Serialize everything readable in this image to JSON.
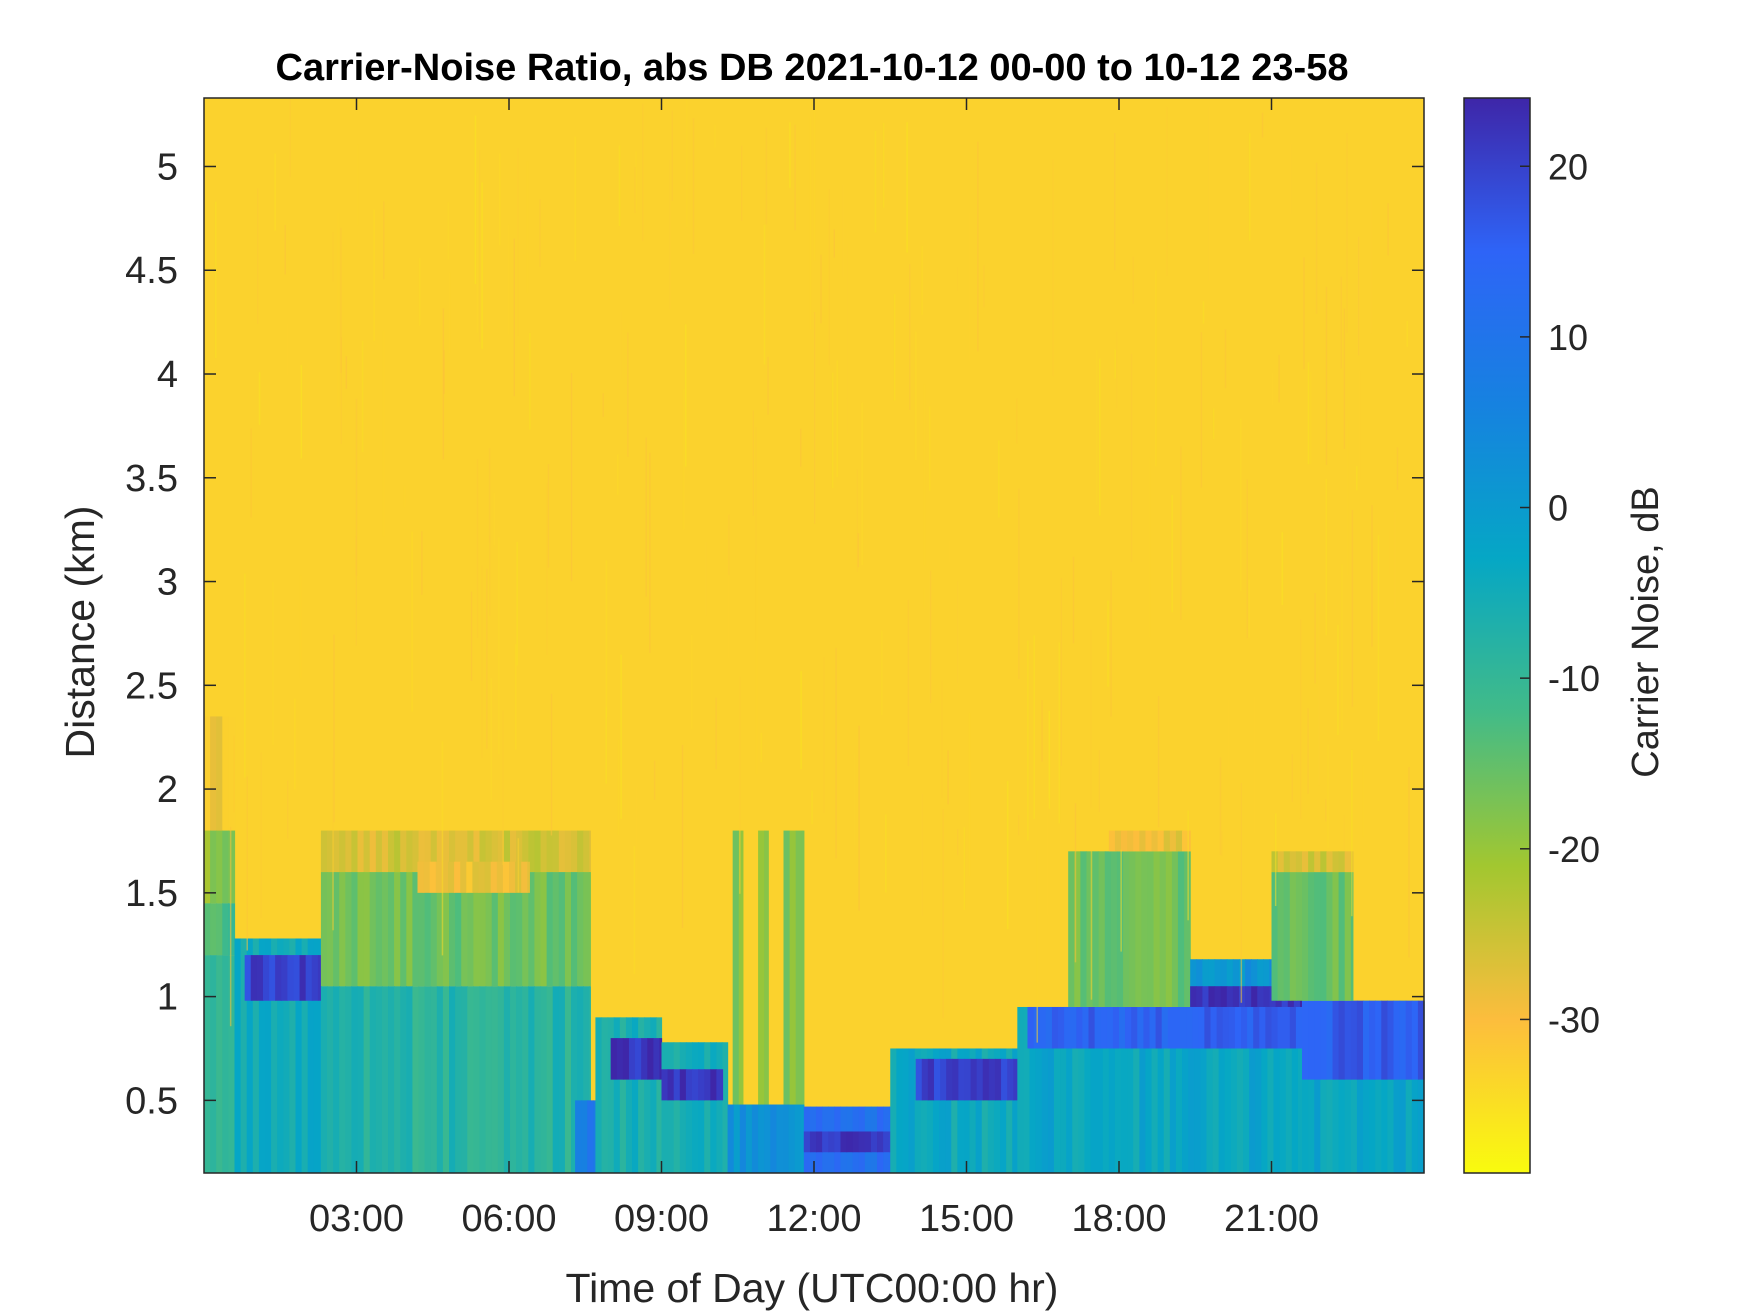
{
  "chart_data": {
    "type": "heatmap",
    "title": "Carrier-Noise Ratio, abs DB 2021-10-12 00-00 to 10-12 23-58",
    "xlabel": "Time of Day (UTC00:00 hr)",
    "ylabel": "Distance (km)",
    "colorbar_label": "Carrier Noise, dB",
    "xlim_hours": [
      0,
      24
    ],
    "ylim_km": [
      0.15,
      5.33
    ],
    "clim_db": [
      -39,
      24
    ],
    "colormap": "parula",
    "colormap_stops": [
      "#f9fb0e",
      "#fcbd3d",
      "#a2c730",
      "#42bb88",
      "#05a7c5",
      "#1682e0",
      "#2e64f7",
      "#3e26a8"
    ],
    "x_ticks": [
      {
        "value": 3,
        "label": "03:00"
      },
      {
        "value": 6,
        "label": "06:00"
      },
      {
        "value": 9,
        "label": "09:00"
      },
      {
        "value": 12,
        "label": "12:00"
      },
      {
        "value": 15,
        "label": "15:00"
      },
      {
        "value": 18,
        "label": "18:00"
      },
      {
        "value": 21,
        "label": "21:00"
      }
    ],
    "y_ticks": [
      {
        "value": 0.5,
        "label": "0.5"
      },
      {
        "value": 1,
        "label": "1"
      },
      {
        "value": 1.5,
        "label": "1.5"
      },
      {
        "value": 2,
        "label": "2"
      },
      {
        "value": 2.5,
        "label": "2.5"
      },
      {
        "value": 3,
        "label": "3"
      },
      {
        "value": 3.5,
        "label": "3.5"
      },
      {
        "value": 4,
        "label": "4"
      },
      {
        "value": 4.5,
        "label": "4.5"
      },
      {
        "value": 5,
        "label": "5"
      }
    ],
    "colorbar_ticks": [
      {
        "value": 20,
        "label": "20"
      },
      {
        "value": 10,
        "label": "10"
      },
      {
        "value": 0,
        "label": "0"
      },
      {
        "value": -10,
        "label": "-10"
      },
      {
        "value": -20,
        "label": "-20"
      },
      {
        "value": -30,
        "label": "-30"
      }
    ],
    "background_db": -33,
    "regions": [
      {
        "t0": 0.0,
        "t1": 0.6,
        "d0": 1.8,
        "d1": 2.35,
        "db": -30
      },
      {
        "t0": 0.0,
        "t1": 0.6,
        "d0": 1.45,
        "d1": 1.8,
        "db": -19
      },
      {
        "t0": 0.0,
        "t1": 0.6,
        "d0": 1.2,
        "d1": 1.45,
        "db": -13
      },
      {
        "t0": 0.0,
        "t1": 0.6,
        "d0": 0.15,
        "d1": 1.2,
        "db": -8
      },
      {
        "t0": 0.6,
        "t1": 2.3,
        "d0": 0.15,
        "d1": 1.28,
        "db": -5
      },
      {
        "t0": 0.8,
        "t1": 2.3,
        "d0": 0.98,
        "d1": 1.2,
        "db": 20
      },
      {
        "t0": 2.3,
        "t1": 7.6,
        "d0": 1.6,
        "d1": 1.8,
        "db": -26
      },
      {
        "t0": 2.3,
        "t1": 7.6,
        "d0": 1.05,
        "d1": 1.6,
        "db": -16
      },
      {
        "t0": 2.3,
        "t1": 7.6,
        "d0": 0.15,
        "d1": 1.05,
        "db": -8
      },
      {
        "t0": 4.2,
        "t1": 6.4,
        "d0": 1.5,
        "d1": 1.65,
        "db": -29
      },
      {
        "t0": 7.3,
        "t1": 8.2,
        "d0": 0.15,
        "d1": 0.5,
        "db": 8
      },
      {
        "t0": 7.7,
        "t1": 9.0,
        "d0": 0.15,
        "d1": 0.9,
        "db": -6
      },
      {
        "t0": 8.0,
        "t1": 9.0,
        "d0": 0.6,
        "d1": 0.8,
        "db": 22
      },
      {
        "t0": 9.0,
        "t1": 10.3,
        "d0": 0.15,
        "d1": 0.78,
        "db": -5
      },
      {
        "t0": 9.0,
        "t1": 10.2,
        "d0": 0.5,
        "d1": 0.65,
        "db": 22
      },
      {
        "t0": 10.3,
        "t1": 11.8,
        "d0": 0.15,
        "d1": 0.48,
        "db": 2
      },
      {
        "t0": 10.4,
        "t1": 10.6,
        "d0": 0.48,
        "d1": 1.8,
        "db": -17
      },
      {
        "t0": 10.9,
        "t1": 11.1,
        "d0": 0.48,
        "d1": 1.8,
        "db": -17
      },
      {
        "t0": 11.4,
        "t1": 11.8,
        "d0": 0.48,
        "d1": 1.8,
        "db": -17
      },
      {
        "t0": 11.8,
        "t1": 13.5,
        "d0": 0.15,
        "d1": 0.47,
        "db": 12
      },
      {
        "t0": 11.8,
        "t1": 13.5,
        "d0": 0.25,
        "d1": 0.35,
        "db": 22
      },
      {
        "t0": 13.5,
        "t1": 16.0,
        "d0": 0.15,
        "d1": 0.75,
        "db": -4
      },
      {
        "t0": 14.0,
        "t1": 16.0,
        "d0": 0.5,
        "d1": 0.7,
        "db": 20
      },
      {
        "t0": 16.0,
        "t1": 21.6,
        "d0": 0.15,
        "d1": 0.95,
        "db": -3
      },
      {
        "t0": 16.2,
        "t1": 21.6,
        "d0": 0.75,
        "d1": 0.95,
        "db": 15
      },
      {
        "t0": 17.0,
        "t1": 19.4,
        "d0": 0.95,
        "d1": 1.7,
        "db": -16
      },
      {
        "t0": 17.8,
        "t1": 19.4,
        "d0": 1.7,
        "d1": 1.8,
        "db": -28
      },
      {
        "t0": 19.4,
        "t1": 21.6,
        "d0": 0.95,
        "d1": 1.18,
        "db": 2
      },
      {
        "t0": 19.4,
        "t1": 21.6,
        "d0": 0.95,
        "d1": 1.05,
        "db": 22
      },
      {
        "t0": 21.6,
        "t1": 24.0,
        "d0": 0.15,
        "d1": 0.98,
        "db": -3
      },
      {
        "t0": 21.6,
        "t1": 24.0,
        "d0": 0.6,
        "d1": 0.98,
        "db": 16
      },
      {
        "t0": 21.0,
        "t1": 22.6,
        "d0": 0.98,
        "d1": 1.6,
        "db": -16
      },
      {
        "t0": 21.0,
        "t1": 22.6,
        "d0": 1.6,
        "d1": 1.7,
        "db": -26
      }
    ]
  }
}
